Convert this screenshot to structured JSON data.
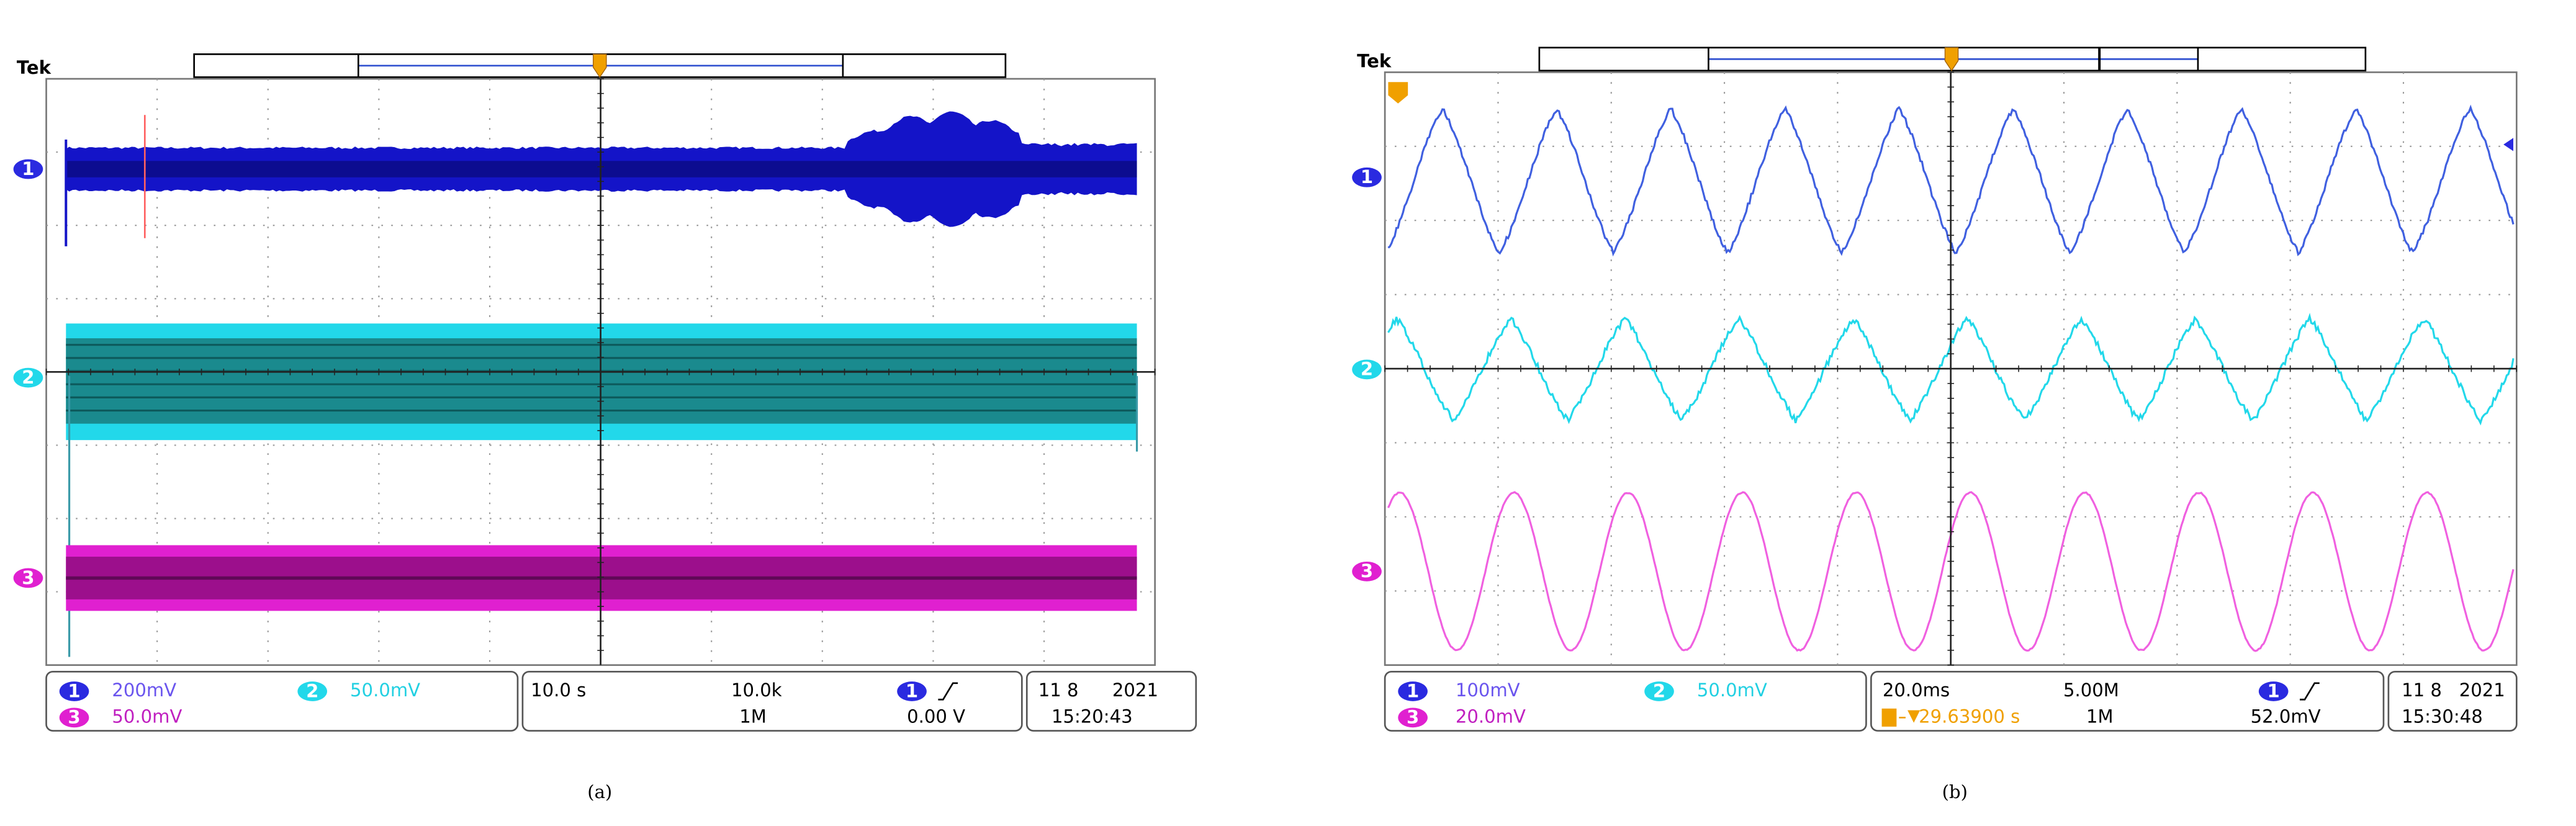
{
  "panels": [
    {
      "label": "(a)",
      "brand": "Tek",
      "channels": [
        {
          "number": "1",
          "scale": "200mV"
        },
        {
          "number": "2",
          "scale": "50.0mV"
        },
        {
          "number": "3",
          "scale": "50.0mV"
        }
      ],
      "horizontal_scale": "10.0 s",
      "sample_rate": "10.0k",
      "record_length": "1M",
      "trigger_channel": "1",
      "trigger_level": "0.00 V",
      "date": "11 8",
      "year": "2021",
      "time": "15:20:43"
    },
    {
      "label": "(b)",
      "brand": "Tek",
      "channels": [
        {
          "number": "1",
          "scale": "100mV"
        },
        {
          "number": "2",
          "scale": "50.0mV"
        },
        {
          "number": "3",
          "scale": "20.0mV"
        }
      ],
      "horizontal_scale": "20.0ms",
      "sample_rate": "5.00M",
      "trigger_offset": "29.63900 s",
      "record_length": "1M",
      "trigger_channel": "1",
      "trigger_level": "52.0mV",
      "date": "11 8",
      "year": "2021",
      "time": "15:30:48"
    }
  ]
}
